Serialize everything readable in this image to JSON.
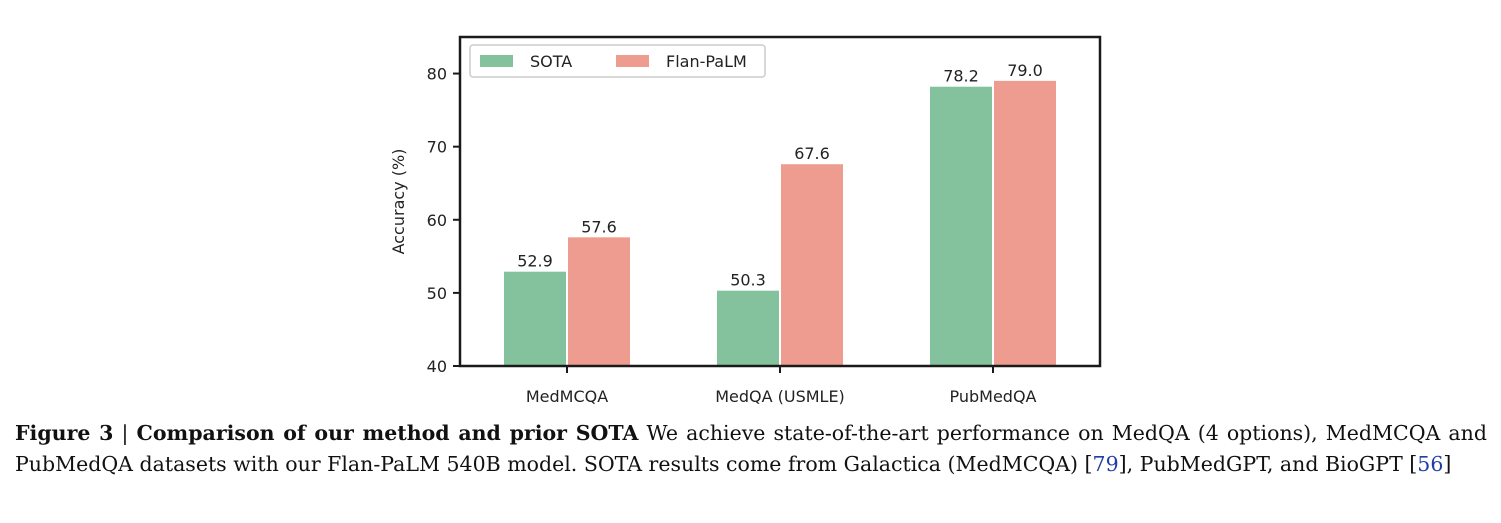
{
  "chart_data": {
    "type": "bar",
    "categories": [
      "MedMCQA",
      "MedQA (USMLE)",
      "PubMedQA"
    ],
    "series": [
      {
        "name": "SOTA",
        "values": [
          52.9,
          50.3,
          78.2
        ],
        "labels": [
          "52.9",
          "50.3",
          "78.2"
        ],
        "color": "#84c19d"
      },
      {
        "name": "Flan-PaLM",
        "values": [
          57.6,
          67.6,
          79.0
        ],
        "labels": [
          "57.6",
          "67.6",
          "79.0"
        ],
        "color": "#ee9c8f"
      }
    ],
    "ylabel": "Accuracy (%)",
    "xlabel": "",
    "ylim": [
      40,
      85
    ],
    "yticks": [
      40,
      50,
      60,
      70,
      80
    ],
    "ytick_labels": [
      "40",
      "50",
      "60",
      "70",
      "80"
    ],
    "legend_position": "top-left",
    "grid": false
  },
  "caption": {
    "figure_label": "Figure 3",
    "separator": "|",
    "title": "Comparison of our method and prior SOTA",
    "text_1": "We achieve state-of-the-art performance on MedQA (4 options), MedMCQA and PubMedQA datasets with our Flan-PaLM 540B model. SOTA results come from Galactica (MedMCQA) [",
    "cite_1": "79",
    "text_2": "], PubMedGPT, and BioGPT [",
    "cite_2": "56",
    "text_3": "]"
  }
}
